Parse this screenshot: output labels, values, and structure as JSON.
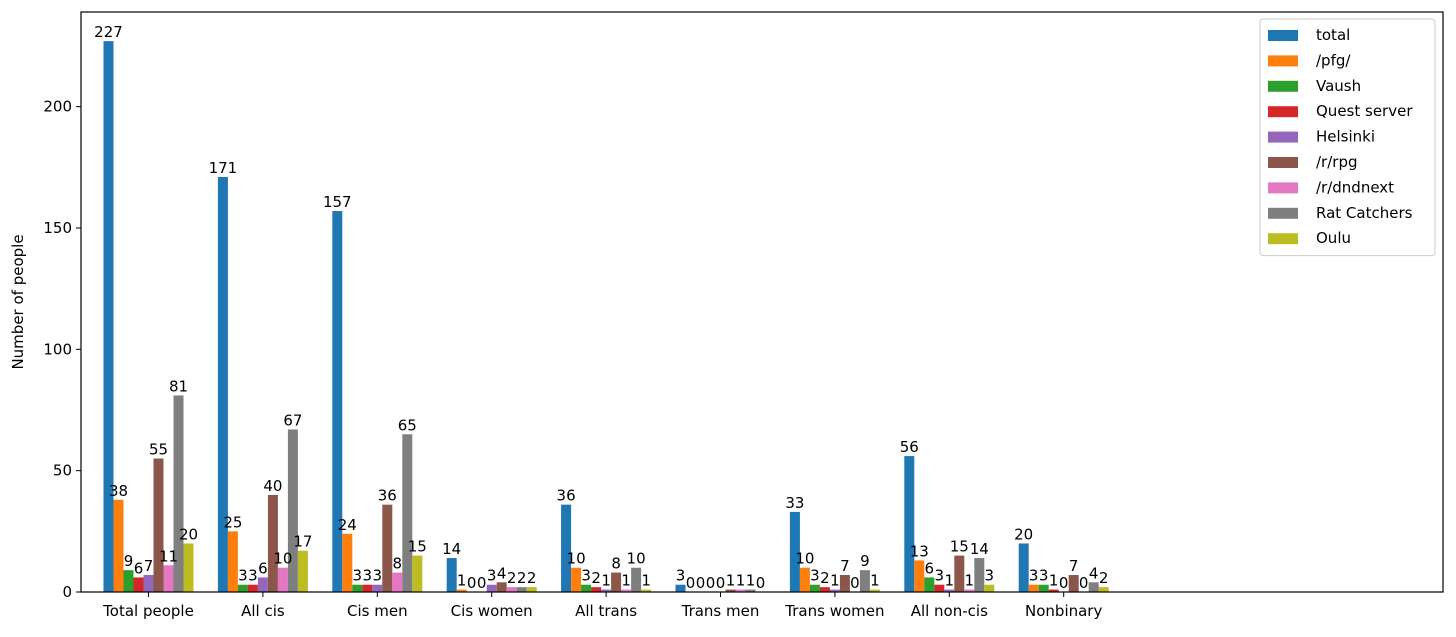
{
  "chart_data": {
    "type": "bar",
    "title": "",
    "xlabel": "",
    "ylabel": "Number of people",
    "ylim": [
      0,
      239
    ],
    "yticks": [
      0,
      50,
      100,
      150,
      200
    ],
    "grid": false,
    "legend_position": "top-right",
    "categories": [
      "Total people",
      "All cis",
      "Cis men",
      "Cis women",
      "All trans",
      "Trans men",
      "Trans women",
      "All non-cis",
      "Nonbinary"
    ],
    "series": [
      {
        "name": "total",
        "color": "#1f77b4",
        "values": [
          227,
          171,
          157,
          14,
          36,
          3,
          33,
          56,
          20
        ]
      },
      {
        "name": "/pfg/",
        "color": "#ff7f0e",
        "values": [
          38,
          25,
          24,
          1,
          10,
          0,
          10,
          13,
          3
        ]
      },
      {
        "name": "Vaush",
        "color": "#2ca02c",
        "values": [
          9,
          3,
          3,
          0,
          3,
          0,
          3,
          6,
          3
        ]
      },
      {
        "name": "Quest server",
        "color": "#d62728",
        "values": [
          6,
          3,
          3,
          0,
          2,
          0,
          2,
          3,
          1
        ]
      },
      {
        "name": "Helsinki",
        "color": "#9467bd",
        "values": [
          7,
          6,
          3,
          3,
          1,
          0,
          1,
          1,
          0
        ]
      },
      {
        "name": "/r/rpg",
        "color": "#8c564b",
        "values": [
          55,
          40,
          36,
          4,
          8,
          1,
          7,
          15,
          7
        ]
      },
      {
        "name": "/r/dndnext",
        "color": "#e377c2",
        "values": [
          11,
          10,
          8,
          2,
          1,
          1,
          0,
          1,
          0
        ]
      },
      {
        "name": "Rat Catchers",
        "color": "#7f7f7f",
        "values": [
          81,
          67,
          65,
          2,
          10,
          1,
          9,
          14,
          4
        ]
      },
      {
        "name": "Oulu",
        "color": "#bcbd22",
        "values": [
          20,
          17,
          15,
          2,
          1,
          0,
          1,
          3,
          2
        ]
      }
    ]
  }
}
